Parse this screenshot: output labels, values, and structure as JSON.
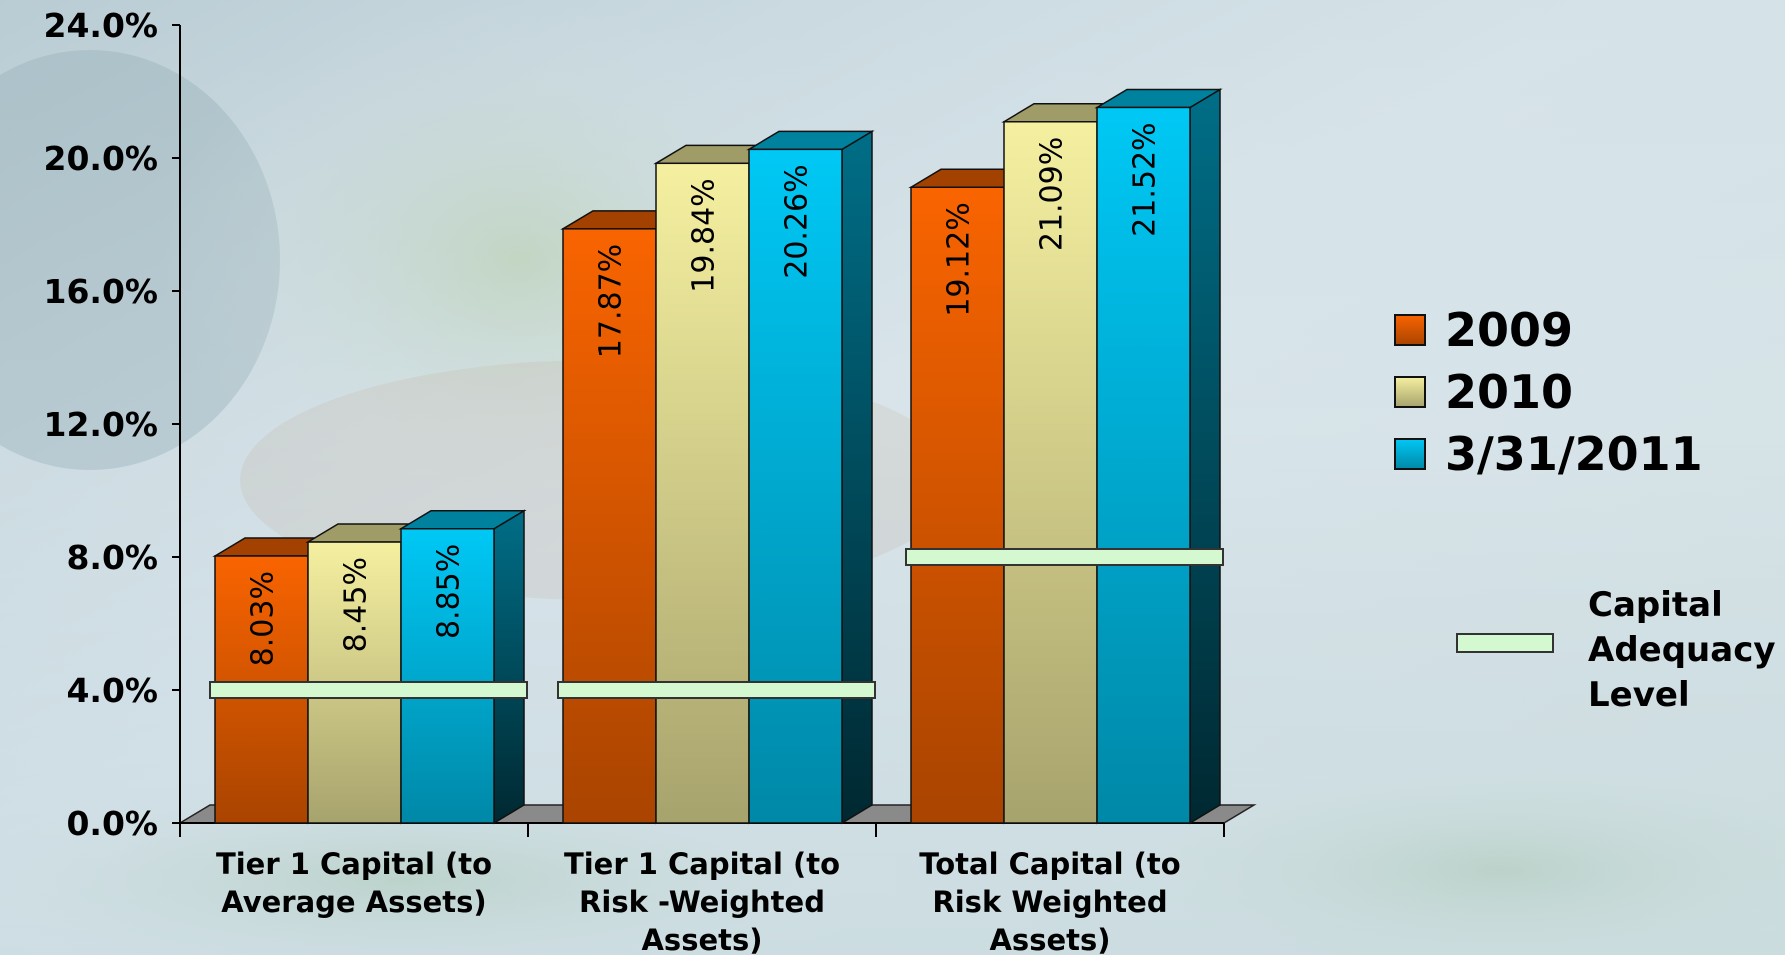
{
  "chart_data": {
    "type": "bar",
    "categories": [
      [
        "Tier 1 Capital (to",
        "Average Assets)"
      ],
      [
        "Tier 1 Capital (to",
        "Risk -Weighted",
        "Assets)"
      ],
      [
        "Total Capital (to",
        "Risk Weighted",
        "Assets)"
      ]
    ],
    "series": [
      {
        "name": "2009",
        "values": [
          8.03,
          17.87,
          19.12
        ],
        "labels": [
          "8.03%",
          "17.87%",
          "19.12%"
        ],
        "color": "#f96400"
      },
      {
        "name": "2010",
        "values": [
          8.45,
          19.84,
          21.09
        ],
        "labels": [
          "8.45%",
          "19.84%",
          "21.09%"
        ],
        "color": "#f5f0a0"
      },
      {
        "name": "3/31/2011",
        "values": [
          8.85,
          20.26,
          21.52
        ],
        "labels": [
          "8.85%",
          "20.26%",
          "21.52%"
        ],
        "color": "#00c8f5"
      }
    ],
    "reference_line": {
      "name": [
        "Capital",
        "Adequacy",
        "Level"
      ],
      "values": [
        4.0,
        4.0,
        8.0
      ],
      "color": "#d4f8d0"
    },
    "y_ticks": [
      "0.0%",
      "4.0%",
      "8.0%",
      "12.0%",
      "16.0%",
      "20.0%",
      "24.0%"
    ],
    "ylim": [
      0,
      24
    ],
    "legend_position": "right",
    "grid": false,
    "title": "",
    "xlabel": "",
    "ylabel": ""
  }
}
